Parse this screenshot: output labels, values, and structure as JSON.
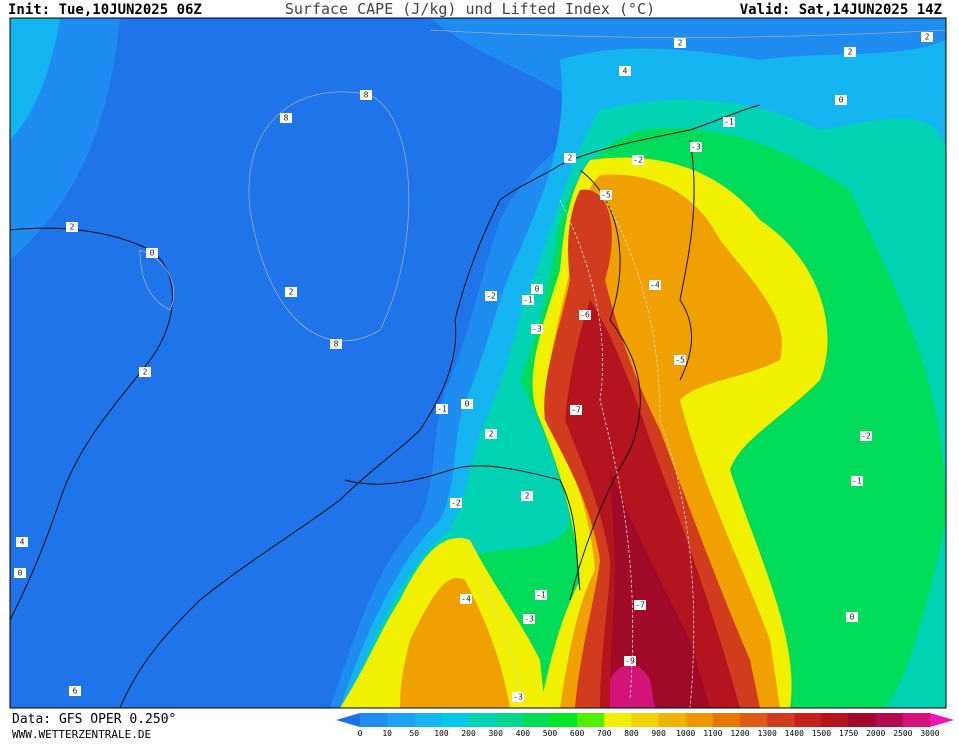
{
  "header": {
    "init": "Init: Tue,10JUN2025 06Z",
    "title": "Surface CAPE (J/kg) und Lifted Index (°C)",
    "valid": "Valid: Sat,14JUN2025 14Z"
  },
  "footer": {
    "data": "Data: GFS OPER 0.250°",
    "site": "WWW.WETTERZENTRALE.DE"
  },
  "colorbar": {
    "labels": [
      "0",
      "10",
      "50",
      "100",
      "200",
      "300",
      "400",
      "500",
      "600",
      "700",
      "800",
      "900",
      "1000",
      "1100",
      "1200",
      "1300",
      "1400",
      "1500",
      "1750",
      "2000",
      "2500",
      "3000"
    ],
    "colors": [
      "#1e8cf0",
      "#1ea0f0",
      "#14b4f0",
      "#00c8e6",
      "#00d2b4",
      "#00d78c",
      "#00dc5a",
      "#00e628",
      "#50f000",
      "#f0f000",
      "#f0d200",
      "#f0b400",
      "#f09600",
      "#e67800",
      "#dc5a14",
      "#d23c1e",
      "#c81e1e",
      "#b4141e",
      "#a00a28",
      "#b40a50",
      "#d21478"
    ],
    "under": "#1e6ee6",
    "over": "#f014b4"
  },
  "contour_labels": [
    "2",
    "4",
    "2",
    "2",
    "0",
    "8",
    "8",
    "2",
    "0",
    "2",
    "8",
    "2",
    "-1",
    "-3",
    "-2",
    "2",
    "-5",
    "-4",
    "-6",
    "-5",
    "-7",
    "-2",
    "-1",
    "-2",
    "2",
    "-4",
    "-3",
    "-7",
    "-9",
    "0",
    "-3",
    "6",
    "4",
    "0",
    "-1",
    "0",
    "2",
    "-1",
    "-1",
    "-2",
    "0",
    "-3"
  ]
}
